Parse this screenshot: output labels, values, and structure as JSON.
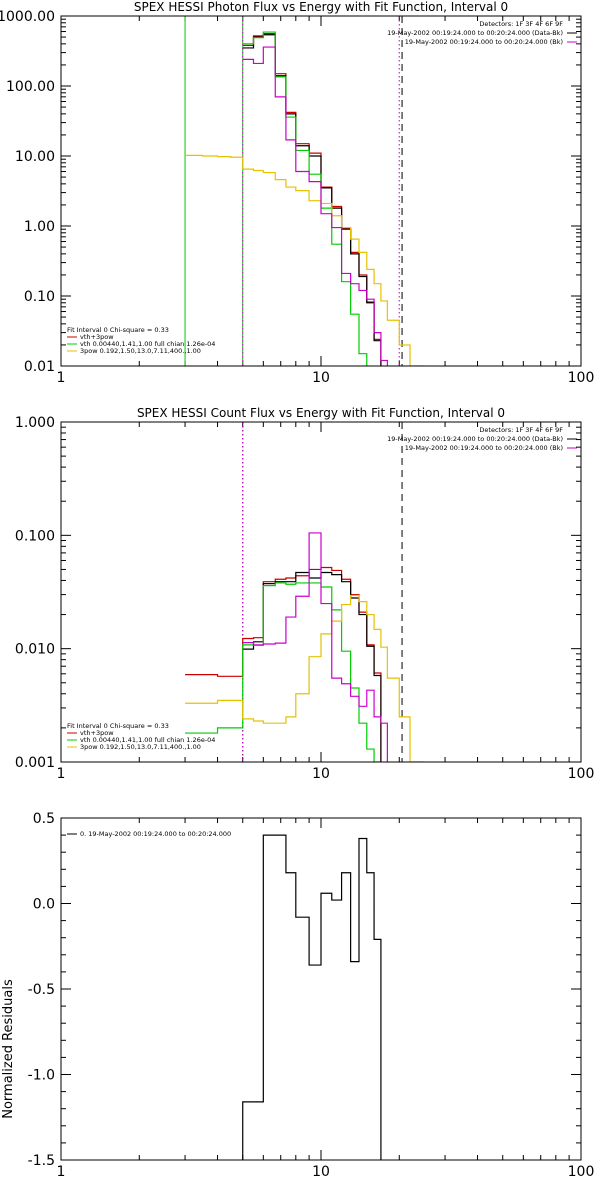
{
  "chart_data": [
    {
      "type": "line",
      "title": "SPEX HESSI Photon Flux vs Energy with Fit Function, Interval 0",
      "xscale": "log",
      "yscale": "log",
      "xlim": [
        1,
        100
      ],
      "ylim": [
        0.01,
        1000
      ],
      "x_ticks": [
        1,
        10,
        100
      ],
      "x_tick_labels": [
        "1",
        "10",
        "100"
      ],
      "y_ticks": [
        0.01,
        0.1,
        1,
        10,
        100,
        1000
      ],
      "y_tick_labels": [
        "0.01",
        "0.10",
        "1.00",
        "10.00",
        "100.00",
        "1000.00"
      ],
      "header_text": [
        "Detectors: 1F 3F 4F 6F 9F",
        "19-May-2002 00:19:24.000 to 00:20:24.000 (Data-Bk)",
        "19-May-2002 00:19:24.000 to 00:20:24.000 (Bk)"
      ],
      "legend_title": "Fit Interval 0   Chi-square = 0.33",
      "legend_position": "bottom-left",
      "bin_edges": [
        3,
        3.5,
        4,
        4.5,
        5,
        5.5,
        6,
        6.67,
        7.33,
        8,
        9,
        10,
        11,
        12,
        13,
        14,
        15,
        16,
        17,
        18,
        20,
        22,
        25
      ],
      "series": [
        {
          "name": "vth+3pow",
          "color": "#cc0000",
          "start_edge": 4,
          "values": [
            380,
            520,
            560,
            150,
            42,
            15,
            11,
            3.6,
            1.9,
            0.92,
            0.42,
            0.2,
            0.082,
            0.024
          ]
        },
        {
          "name": "",
          "color": "#000000",
          "start_edge": 4,
          "values": [
            350,
            500,
            540,
            140,
            40,
            14,
            10,
            3.5,
            1.8,
            0.9,
            0.4,
            0.19,
            0.08,
            0.023
          ]
        },
        {
          "name": "vth 0.00440,1.41,1.00  full chian 1.26e-04",
          "color": "#00cc00",
          "start_edge": 4,
          "values": [
            400,
            490,
            590,
            135,
            36,
            12,
            5.5,
            1.8,
            0.55,
            0.16,
            0.055,
            0.015,
            0.008
          ]
        },
        {
          "name": "3pow 0.192,1.50,13.0,7.11,400.,1.00",
          "color": "#e6c200",
          "start_edge": 0,
          "values": [
            10.2,
            10,
            9.8,
            9.6,
            6.5,
            6.2,
            5.8,
            4.6,
            3.6,
            3.2,
            2.3,
            2.1,
            1.4,
            0.95,
            0.65,
            0.42,
            0.24,
            0.15,
            0.085,
            0.045,
            0.02,
            0.01
          ]
        },
        {
          "name": "",
          "color": "#cc00cc",
          "start_edge": 4,
          "values": [
            240,
            210,
            360,
            70,
            17,
            6,
            4.3,
            1.5,
            0.95,
            0.21,
            0.15,
            0.12,
            0.09,
            0.03,
            0.012
          ]
        }
      ],
      "vlines": [
        {
          "x": 3,
          "color": "#00cc00",
          "style": "solid"
        },
        {
          "x": 5,
          "color": "#00cc00",
          "style": "solid"
        },
        {
          "x": 5,
          "color": "#cc00cc",
          "style": "dotted"
        },
        {
          "x": 20,
          "color": "#cc00cc",
          "style": "dotted"
        },
        {
          "x": 20.5,
          "color": "#000000",
          "style": "dashed"
        }
      ]
    },
    {
      "type": "line",
      "title": "SPEX HESSI Count Flux vs Energy with Fit Function, Interval 0",
      "xscale": "log",
      "yscale": "log",
      "xlim": [
        1,
        100
      ],
      "ylim": [
        0.001,
        1
      ],
      "x_ticks": [
        1,
        10,
        100
      ],
      "x_tick_labels": [
        "1",
        "10",
        "100"
      ],
      "y_ticks": [
        0.001,
        0.01,
        0.1,
        1
      ],
      "y_tick_labels": [
        "0.001",
        "0.010",
        "0.100",
        "1.000"
      ],
      "header_text": [
        "Detectors: 1F 3F 4F 6F 9F",
        "19-May-2002 00:19:24.000 to 00:20:24.000 (Data-Bk)",
        "19-May-2002 00:19:24.000 to 00:20:24.000 (Bk)"
      ],
      "legend_title": "Fit Interval 0   Chi-square = 0.33",
      "legend_position": "bottom-left",
      "bin_edges": [
        3,
        4,
        5,
        5.5,
        6,
        6.67,
        7.33,
        8,
        9,
        10,
        11,
        12,
        13,
        14,
        15,
        16,
        17,
        18,
        20,
        22,
        25
      ],
      "series": [
        {
          "name": "vth+3pow",
          "color": "#cc0000",
          "start_edge": 0,
          "values": [
            0.0059,
            0.0057,
            0.0123,
            0.0125,
            0.039,
            0.041,
            0.042,
            0.044,
            0.05,
            0.052,
            0.049,
            0.041,
            0.03,
            0.021,
            0.0108,
            0.0061
          ]
        },
        {
          "name": "",
          "color": "#000000",
          "start_edge": 2,
          "values": [
            0.0099,
            0.0115,
            0.0375,
            0.039,
            0.039,
            0.047,
            0.042,
            0.047,
            0.045,
            0.039,
            0.028,
            0.02,
            0.0105,
            0.0058
          ]
        },
        {
          "name": "vth 0.00440,1.41,1.00  full chian 1.26e-04",
          "color": "#00cc00",
          "start_edge": 0,
          "values": [
            0.0018,
            0.002,
            0.0108,
            0.0107,
            0.036,
            0.038,
            0.037,
            0.038,
            0.038,
            0.035,
            0.022,
            0.0095,
            0.0045,
            0.0022,
            0.0013,
            0.001
          ]
        },
        {
          "name": "3pow 0.192,1.50,13.0,7.11,400.,1.00",
          "color": "#e6c200",
          "start_edge": 0,
          "values": [
            0.0033,
            0.0035,
            0.0024,
            0.0023,
            0.0022,
            0.0022,
            0.0025,
            0.004,
            0.0085,
            0.0135,
            0.0175,
            0.0245,
            0.0295,
            0.026,
            0.02,
            0.0148,
            0.0103,
            0.0055,
            0.0025,
            0.001
          ]
        },
        {
          "name": "",
          "color": "#cc00cc",
          "start_edge": 2,
          "values": [
            0.0113,
            0.0108,
            0.011,
            0.0112,
            0.019,
            0.029,
            0.105,
            0.025,
            0.0055,
            0.0049,
            0.0038,
            0.0031,
            0.0043,
            0.0025,
            0.0022,
            0.0007
          ]
        }
      ],
      "vlines": [
        {
          "x": 5,
          "color": "#000000",
          "style": "dotted"
        },
        {
          "x": 5,
          "color": "#cc00cc",
          "style": "dotted"
        },
        {
          "x": 20.5,
          "color": "#000000",
          "style": "dashed"
        }
      ]
    },
    {
      "type": "line",
      "title": "",
      "ylabel": "Normalized Residuals",
      "xscale": "log",
      "yscale": "linear",
      "xlim": [
        1,
        100
      ],
      "ylim": [
        -1.5,
        0.5
      ],
      "x_ticks": [
        1,
        10,
        100
      ],
      "x_tick_labels": [
        "1",
        "10",
        "100"
      ],
      "y_ticks": [
        -1.5,
        -1.0,
        -0.5,
        0.0,
        0.5
      ],
      "y_tick_labels": [
        "-1.5",
        "-1.0",
        "-0.5",
        "0.0",
        "0.5"
      ],
      "legend_position": "top-left",
      "bin_edges": [
        5,
        5.5,
        6,
        6.67,
        7.33,
        8,
        9,
        10,
        11,
        12,
        13,
        14,
        15,
        16,
        17,
        18,
        20
      ],
      "series": [
        {
          "name": "0. 19-May-2002 00:19:24.000 to 00:20:24.000",
          "color": "#000000",
          "start_edge": 0,
          "values": [
            -1.16,
            -1.16,
            0.4,
            0.4,
            0.18,
            -0.08,
            -0.36,
            0.06,
            0.02,
            0.18,
            -0.34,
            0.38,
            0.18,
            -0.21
          ]
        }
      ],
      "vlines": []
    }
  ]
}
